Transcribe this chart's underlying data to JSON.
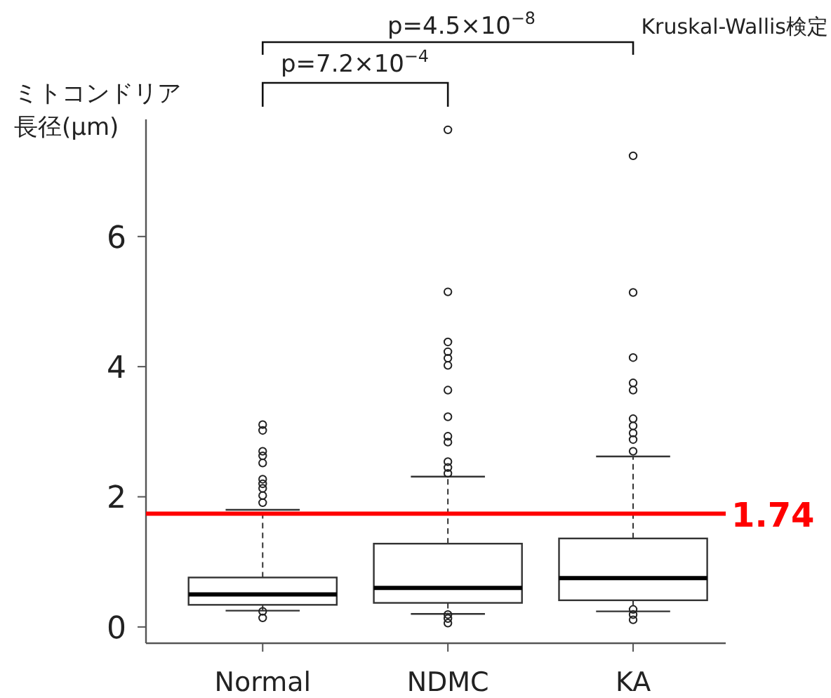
{
  "chart_data": {
    "type": "box",
    "ylabel": "ミトコンドリア長径(μm)",
    "categories": [
      "Normal",
      "NDMC",
      "KA"
    ],
    "boxes": [
      {
        "low": 0.25,
        "q1": 0.34,
        "median": 0.5,
        "q3": 0.76,
        "high": 1.8,
        "outliers": [
          3.11,
          3.02,
          2.7,
          2.63,
          2.52,
          2.27,
          2.2,
          2.13,
          2.02,
          1.91,
          0.24,
          0.14
        ]
      },
      {
        "low": 0.2,
        "q1": 0.37,
        "median": 0.6,
        "q3": 1.28,
        "high": 2.31,
        "outliers": [
          7.64,
          5.15,
          4.38,
          4.23,
          4.13,
          4.02,
          3.64,
          3.23,
          2.93,
          2.84,
          2.54,
          2.45,
          2.36,
          0.19,
          0.13,
          0.06
        ]
      },
      {
        "low": 0.24,
        "q1": 0.41,
        "median": 0.75,
        "q3": 1.36,
        "high": 2.62,
        "outliers": [
          7.24,
          5.14,
          4.14,
          3.75,
          3.64,
          3.2,
          3.09,
          2.98,
          2.88,
          2.7,
          0.27,
          0.19,
          0.11
        ]
      }
    ],
    "ylim": [
      -0.25,
      7.8
    ],
    "yticks": [
      0,
      2,
      4,
      6
    ],
    "ref_lines": [
      {
        "axis": "y",
        "value": 1.74,
        "label": "1.74",
        "color": "#ff0000"
      }
    ],
    "annotations": [
      "p=4.5×10$^{−8}$",
      "p=7.2×10$^{−4}$",
      "Kruskal-Wallis検定"
    ],
    "grid": false
  }
}
